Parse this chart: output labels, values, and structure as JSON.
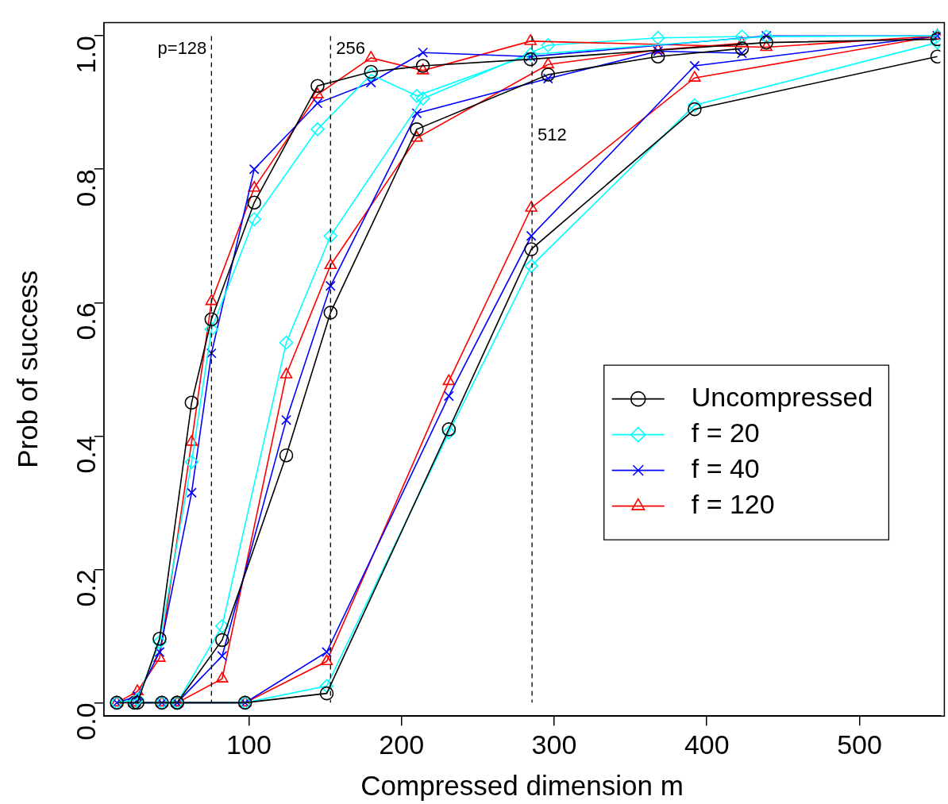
{
  "chart_data": {
    "type": "line",
    "xlabel": "Compressed dimension m",
    "ylabel": "Prob of success",
    "xlim": [
      5,
      553
    ],
    "xticks": [
      100,
      200,
      300,
      400,
      500
    ],
    "ylim": [
      -0.02,
      1.02
    ],
    "yticks": [
      {
        "value": 0,
        "label": "0.0"
      },
      {
        "value": 0.2,
        "label": "0.2"
      },
      {
        "value": 0.4,
        "label": "0.4"
      },
      {
        "value": 0.6,
        "label": "0.6"
      },
      {
        "value": 0.8,
        "label": "0.8"
      },
      {
        "value": 1,
        "label": "1.0"
      }
    ],
    "grid": false,
    "legend": "right",
    "ref_lines": [
      {
        "axis": "x",
        "value": 75.5,
        "color": "#000000",
        "line_style": "dashed"
      },
      {
        "axis": "x",
        "value": 153.5,
        "color": "#000000",
        "line_style": "dashed"
      },
      {
        "axis": "x",
        "value": 285.5,
        "color": "#000000",
        "line_style": "dashed"
      }
    ],
    "annotations": [
      {
        "text": "p=128",
        "x": 75.5,
        "y": 0.98
      },
      {
        "text": "256",
        "x": 153.5,
        "y": 0.98
      },
      {
        "text": "512",
        "x": 285.5,
        "y": 0.85
      }
    ],
    "series": [
      {
        "name": "Uncompressed",
        "color": "#000000",
        "marker": "circle",
        "x": [
          13.5,
          27,
          41.5,
          62.5,
          75.5,
          103.5,
          145,
          180,
          214,
          284.5,
          439,
          551
        ],
        "values": [
          0,
          0,
          0.096,
          0.45,
          0.575,
          0.75,
          0.925,
          0.946,
          0.955,
          0.965,
          0.99,
          0.995
        ]
      },
      {
        "name": "f = 20",
        "color": "#00ffff",
        "marker": "diamond",
        "x": [
          13.5,
          27,
          41.5,
          62.5,
          75.5,
          103.5,
          145,
          180,
          210,
          284.5,
          439,
          551
        ],
        "values": [
          0,
          0.005,
          0.091,
          0.361,
          0.56,
          0.725,
          0.86,
          0.942,
          0.91,
          0.972,
          0.999,
          1.0
        ]
      },
      {
        "name": "f = 40",
        "color": "#0000ff",
        "marker": "cross",
        "x": [
          13.5,
          27,
          41.5,
          62.5,
          75.5,
          103.5,
          145,
          180,
          214,
          284.5,
          439,
          551
        ],
        "values": [
          0,
          0.01,
          0.076,
          0.315,
          0.524,
          0.8,
          0.899,
          0.93,
          0.975,
          0.969,
          1.0,
          1.0
        ]
      },
      {
        "name": "f = 120",
        "color": "#ff0000",
        "marker": "triangle",
        "x": [
          13.5,
          27,
          41.5,
          62.5,
          75.5,
          103.5,
          145,
          180,
          214,
          284.5,
          439,
          551
        ],
        "values": [
          0,
          0.017,
          0.067,
          0.391,
          0.602,
          0.772,
          0.912,
          0.967,
          0.948,
          0.992,
          0.983,
          1.0
        ]
      },
      {
        "color": "#000000",
        "marker": "circle",
        "x": [
          25,
          43,
          53,
          82.5,
          124.5,
          153.5,
          210,
          296,
          368,
          423
        ],
        "values": [
          0,
          0,
          0,
          0.094,
          0.371,
          0.585,
          0.86,
          0.942,
          0.969,
          0.981
        ]
      },
      {
        "color": "#00ffff",
        "marker": "diamond",
        "x": [
          25,
          43,
          53,
          82.5,
          124.5,
          153.5,
          214,
          296,
          368,
          423
        ],
        "values": [
          0,
          0,
          0,
          0.115,
          0.54,
          0.7,
          0.906,
          0.986,
          0.997,
          0.999
        ]
      },
      {
        "color": "#0000ff",
        "marker": "cross",
        "x": [
          25,
          43,
          53,
          82.5,
          124.5,
          153.5,
          210,
          296,
          368,
          423
        ],
        "values": [
          0,
          0,
          0,
          0.07,
          0.424,
          0.625,
          0.884,
          0.936,
          0.977,
          0.974
        ]
      },
      {
        "color": "#ff0000",
        "marker": "triangle",
        "x": [
          25,
          43,
          53,
          82.5,
          124.5,
          153.5,
          210,
          296,
          368,
          423
        ],
        "values": [
          0,
          0,
          0,
          0.036,
          0.492,
          0.656,
          0.847,
          0.957,
          0.979,
          0.989
        ]
      },
      {
        "color": "#000000",
        "marker": "circle",
        "x": [
          53,
          97.5,
          151,
          231,
          285,
          392,
          551
        ],
        "values": [
          0,
          0,
          0.014,
          0.41,
          0.68,
          0.89,
          0.969
        ]
      },
      {
        "color": "#00ffff",
        "marker": "diamond",
        "x": [
          53,
          97.5,
          151,
          231,
          285,
          392,
          551
        ],
        "values": [
          0,
          0,
          0.025,
          0.405,
          0.655,
          0.896,
          0.99
        ]
      },
      {
        "color": "#0000ff",
        "marker": "cross",
        "x": [
          53,
          97.5,
          151,
          231,
          285,
          392,
          551
        ],
        "values": [
          0,
          0,
          0.076,
          0.46,
          0.7,
          0.955,
          1.0
        ]
      },
      {
        "color": "#ff0000",
        "marker": "triangle",
        "x": [
          53,
          97.5,
          151,
          231,
          285,
          392,
          551
        ],
        "values": [
          0,
          0,
          0.062,
          0.482,
          0.742,
          0.937,
          1.0
        ]
      }
    ]
  }
}
